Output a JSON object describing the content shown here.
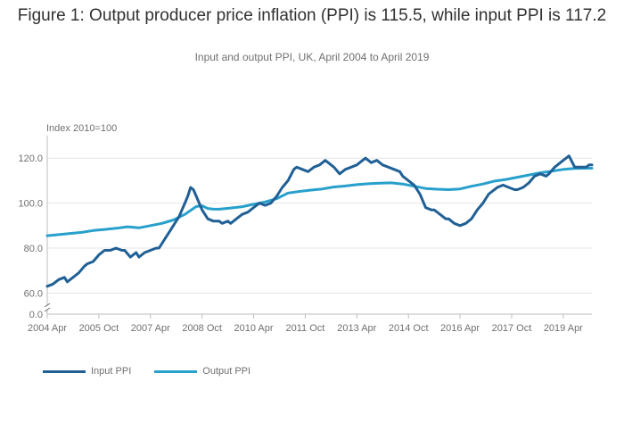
{
  "figure": {
    "title": "Figure 1: Output producer price inflation (PPI) is 115.5, while input PPI is 117.2",
    "subtitle": "Input and output PPI, UK, April 2004 to April 2019"
  },
  "chart_data": {
    "type": "line",
    "title": "Figure 1: Output producer price inflation (PPI) is 115.5, while input PPI is 117.2",
    "subtitle": "Input and output PPI, UK, April 2004 to April 2019",
    "ylabel": "Index 2010=100",
    "xlabel": "",
    "ylim": [
      0,
      130
    ],
    "axis_break": [
      0,
      55
    ],
    "yticks": [
      0,
      60,
      80,
      100,
      120
    ],
    "ytick_labels": [
      "0.0",
      "60.0",
      "80.0",
      "100.0",
      "120.0"
    ],
    "x_start": "2004 Apr",
    "x_end": "2019 Apr",
    "xticks": [
      {
        "label": "2004 Apr",
        "month": 0
      },
      {
        "label": "2005 Oct",
        "month": 18
      },
      {
        "label": "2007 Apr",
        "month": 36
      },
      {
        "label": "2008 Oct",
        "month": 54
      },
      {
        "label": "2010 Apr",
        "month": 72
      },
      {
        "label": "2011 Oct",
        "month": 90
      },
      {
        "label": "2013 Apr",
        "month": 108
      },
      {
        "label": "2014 Oct",
        "month": 126
      },
      {
        "label": "2016 Apr",
        "month": 144
      },
      {
        "label": "2017 Oct",
        "month": 162
      },
      {
        "label": "2019 Apr",
        "month": 180
      }
    ],
    "grid": "horizontal",
    "legend_position": "bottom-left",
    "series": [
      {
        "name": "Input PPI",
        "color": "#206095",
        "points": [
          [
            0,
            63
          ],
          [
            2,
            64
          ],
          [
            4,
            66
          ],
          [
            6,
            67
          ],
          [
            7,
            65
          ],
          [
            9,
            67
          ],
          [
            11,
            69
          ],
          [
            13,
            72
          ],
          [
            14,
            73
          ],
          [
            16,
            74
          ],
          [
            18,
            77
          ],
          [
            20,
            79
          ],
          [
            22,
            79
          ],
          [
            24,
            80
          ],
          [
            26,
            79
          ],
          [
            27,
            79
          ],
          [
            29,
            76
          ],
          [
            31,
            78
          ],
          [
            32,
            76
          ],
          [
            34,
            78
          ],
          [
            36,
            79
          ],
          [
            38,
            80
          ],
          [
            39,
            80
          ],
          [
            41,
            84
          ],
          [
            43,
            88
          ],
          [
            46,
            94
          ],
          [
            48,
            100
          ],
          [
            49,
            103
          ],
          [
            50,
            107
          ],
          [
            51,
            106
          ],
          [
            52,
            103
          ],
          [
            54,
            97
          ],
          [
            56,
            93
          ],
          [
            58,
            92
          ],
          [
            60,
            92
          ],
          [
            61,
            91
          ],
          [
            63,
            92
          ],
          [
            64,
            91
          ],
          [
            66,
            93
          ],
          [
            68,
            95
          ],
          [
            70,
            96
          ],
          [
            72,
            98
          ],
          [
            74,
            100
          ],
          [
            76,
            99
          ],
          [
            78,
            100
          ],
          [
            80,
            103
          ],
          [
            82,
            107
          ],
          [
            84,
            110
          ],
          [
            86,
            115
          ],
          [
            87,
            116
          ],
          [
            89,
            115
          ],
          [
            91,
            114
          ],
          [
            93,
            116
          ],
          [
            95,
            117
          ],
          [
            97,
            119
          ],
          [
            98,
            118
          ],
          [
            100,
            116
          ],
          [
            102,
            113
          ],
          [
            104,
            115
          ],
          [
            106,
            116
          ],
          [
            108,
            117
          ],
          [
            110,
            119
          ],
          [
            111,
            120
          ],
          [
            113,
            118
          ],
          [
            115,
            119
          ],
          [
            117,
            117
          ],
          [
            119,
            116
          ],
          [
            121,
            115
          ],
          [
            123,
            114
          ],
          [
            124,
            112
          ],
          [
            126,
            110
          ],
          [
            128,
            108
          ],
          [
            130,
            104
          ],
          [
            132,
            98
          ],
          [
            134,
            97
          ],
          [
            135,
            97
          ],
          [
            137,
            95
          ],
          [
            139,
            93
          ],
          [
            140,
            93
          ],
          [
            142,
            91
          ],
          [
            144,
            90
          ],
          [
            146,
            91
          ],
          [
            148,
            93
          ],
          [
            150,
            97
          ],
          [
            152,
            100
          ],
          [
            154,
            104
          ],
          [
            155,
            105
          ],
          [
            157,
            107
          ],
          [
            159,
            108
          ],
          [
            161,
            107
          ],
          [
            163,
            106
          ],
          [
            164,
            106
          ],
          [
            166,
            107
          ],
          [
            168,
            109
          ],
          [
            170,
            112
          ],
          [
            172,
            113
          ],
          [
            174,
            112
          ],
          [
            175,
            113
          ],
          [
            177,
            116
          ],
          [
            178,
            117
          ],
          [
            180,
            119
          ],
          [
            182,
            121
          ],
          [
            184,
            116
          ],
          [
            186,
            116
          ],
          [
            188,
            116
          ],
          [
            189,
            117
          ],
          [
            190,
            117
          ]
        ]
      },
      {
        "name": "Output PPI",
        "color": "#27a0cc",
        "points": [
          [
            0,
            85.5
          ],
          [
            4,
            86
          ],
          [
            8,
            86.5
          ],
          [
            12,
            87
          ],
          [
            16,
            87.8
          ],
          [
            20,
            88.3
          ],
          [
            24,
            88.8
          ],
          [
            28,
            89.5
          ],
          [
            32,
            89
          ],
          [
            36,
            90
          ],
          [
            40,
            91
          ],
          [
            44,
            92.5
          ],
          [
            48,
            95
          ],
          [
            52,
            98.5
          ],
          [
            54,
            98.8
          ],
          [
            56,
            97.6
          ],
          [
            58,
            97.3
          ],
          [
            60,
            97.3
          ],
          [
            64,
            97.8
          ],
          [
            68,
            98.4
          ],
          [
            72,
            99.5
          ],
          [
            76,
            100.5
          ],
          [
            80,
            102
          ],
          [
            84,
            104.5
          ],
          [
            88,
            105.2
          ],
          [
            92,
            105.8
          ],
          [
            96,
            106.3
          ],
          [
            100,
            107.2
          ],
          [
            104,
            107.6
          ],
          [
            108,
            108.2
          ],
          [
            112,
            108.6
          ],
          [
            116,
            108.9
          ],
          [
            120,
            109
          ],
          [
            124,
            108.5
          ],
          [
            128,
            107.5
          ],
          [
            132,
            106.5
          ],
          [
            136,
            106.2
          ],
          [
            140,
            106
          ],
          [
            144,
            106.3
          ],
          [
            148,
            107.5
          ],
          [
            152,
            108.5
          ],
          [
            156,
            109.8
          ],
          [
            160,
            110.5
          ],
          [
            164,
            111.5
          ],
          [
            168,
            112.5
          ],
          [
            172,
            113.5
          ],
          [
            176,
            114.2
          ],
          [
            180,
            115
          ],
          [
            184,
            115.4
          ],
          [
            188,
            115.5
          ],
          [
            190,
            115.5
          ]
        ]
      }
    ]
  },
  "legend": [
    {
      "label": "Input PPI",
      "color": "#206095"
    },
    {
      "label": "Output PPI",
      "color": "#27a0cc"
    }
  ]
}
